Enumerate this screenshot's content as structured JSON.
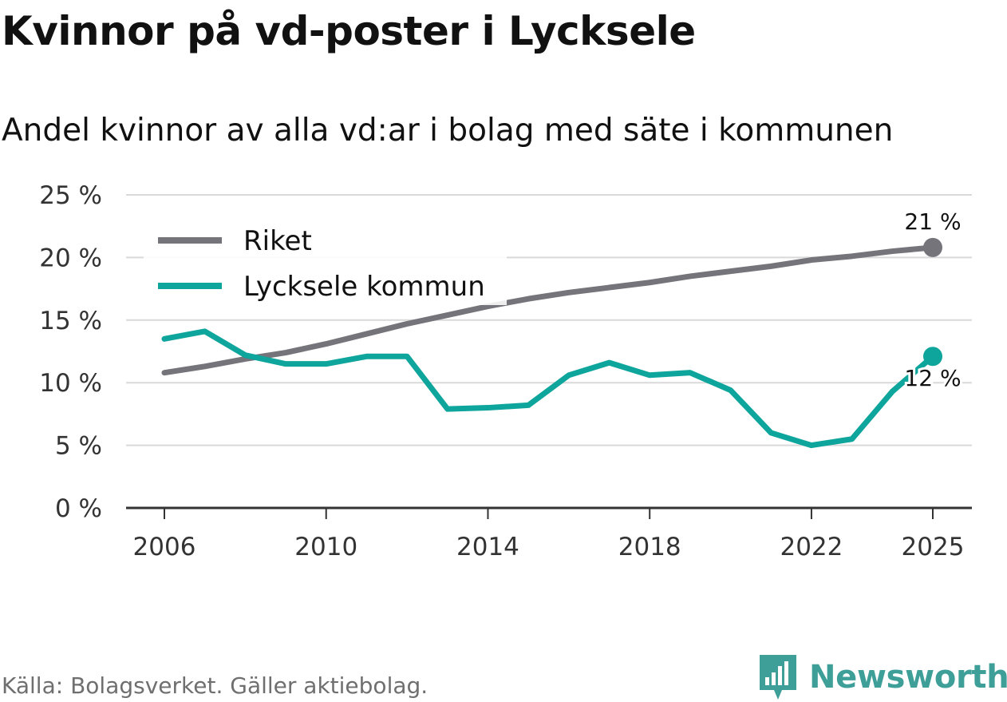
{
  "title": "Kvinnor på vd-poster i Lycksele",
  "subtitle": "Andel kvinnor av alla vd:ar i bolag med säte i kommunen",
  "source": "Källa: Bolagsverket. Gäller aktiebolag.",
  "brand": {
    "name": "Newsworthy",
    "color": "#3e9e98",
    "icon": "bar-chart-logo-icon"
  },
  "chart_data": {
    "type": "line",
    "title": "Kvinnor på vd-poster i Lycksele",
    "subtitle": "Andel kvinnor av alla vd:ar i bolag med säte i kommunen",
    "xlabel": "",
    "ylabel": "",
    "ylim": [
      0,
      25
    ],
    "xlim": [
      2006,
      2025
    ],
    "grid": true,
    "legend_position": "top-left",
    "y_ticks": [
      {
        "value": 0,
        "label": "0 %"
      },
      {
        "value": 5,
        "label": "5 %"
      },
      {
        "value": 10,
        "label": "10 %"
      },
      {
        "value": 15,
        "label": "15 %"
      },
      {
        "value": 20,
        "label": "20 %"
      },
      {
        "value": 25,
        "label": "25 %"
      }
    ],
    "x_ticks": [
      {
        "value": 2006,
        "label": "2006"
      },
      {
        "value": 2010,
        "label": "2010"
      },
      {
        "value": 2014,
        "label": "2014"
      },
      {
        "value": 2018,
        "label": "2018"
      },
      {
        "value": 2022,
        "label": "2022"
      },
      {
        "value": 2025,
        "label": "2025"
      }
    ],
    "x": [
      2006,
      2007,
      2008,
      2009,
      2010,
      2011,
      2012,
      2013,
      2014,
      2015,
      2016,
      2017,
      2018,
      2019,
      2020,
      2021,
      2022,
      2023,
      2024,
      2025
    ],
    "series": [
      {
        "name": "Riket",
        "color": "#75747a",
        "values": [
          10.8,
          11.3,
          11.9,
          12.4,
          13.1,
          13.9,
          14.7,
          15.4,
          16.1,
          16.7,
          17.2,
          17.6,
          18.0,
          18.5,
          18.9,
          19.3,
          19.8,
          20.1,
          20.5,
          20.8
        ],
        "end_label": "21 %"
      },
      {
        "name": "Lycksele kommun",
        "color": "#0ea59c",
        "values": [
          13.5,
          14.1,
          12.2,
          11.5,
          11.5,
          12.1,
          12.1,
          7.9,
          8.0,
          8.2,
          10.6,
          11.6,
          10.6,
          10.8,
          9.4,
          6.0,
          5.0,
          5.5,
          9.3,
          12.1
        ],
        "end_label": "12 %"
      }
    ]
  }
}
